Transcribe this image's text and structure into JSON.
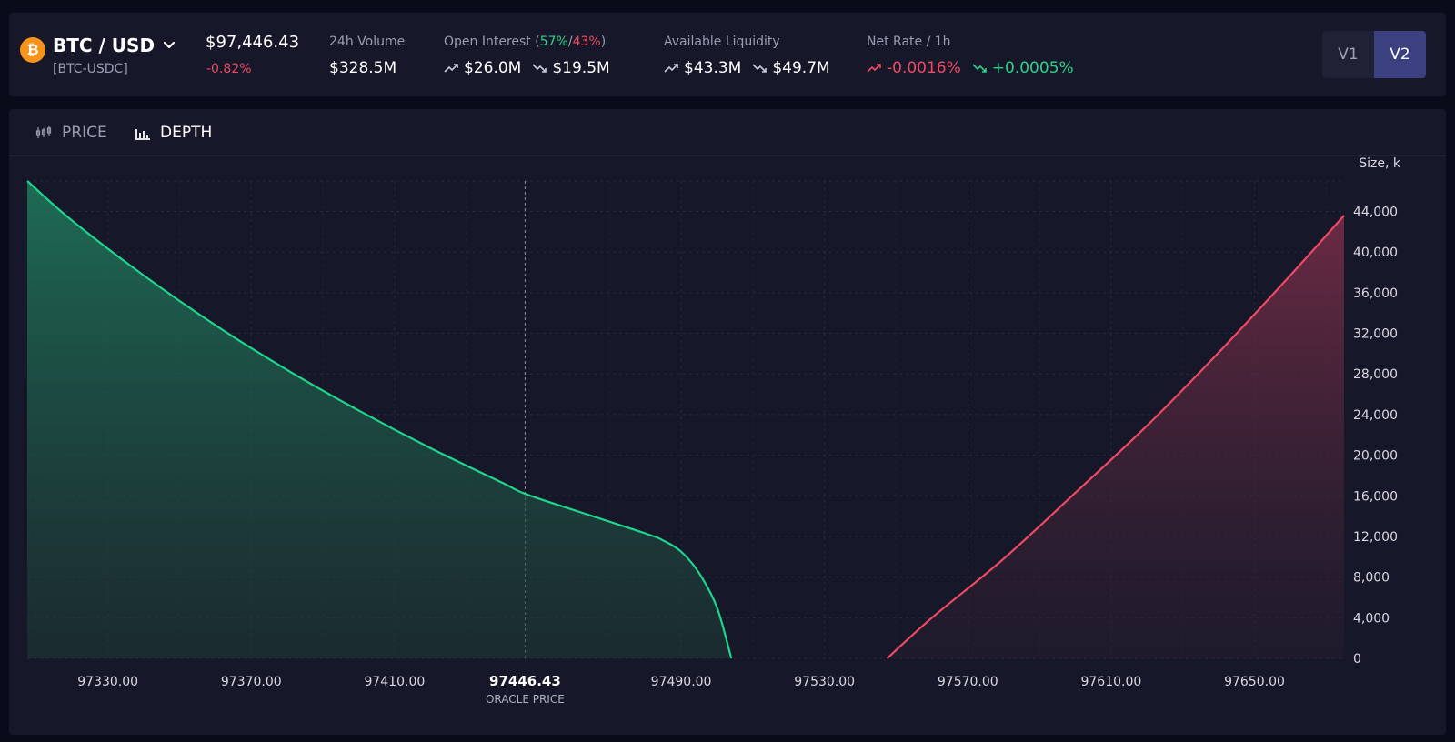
{
  "header": {
    "pair": "BTC / USD",
    "sub": "[BTC-USDC]",
    "price": "$97,446.43",
    "change": "-0.82%",
    "volume_label": "24h Volume",
    "volume_value": "$328.5M",
    "oi_label": "Open Interest",
    "oi_long_pct": "57%",
    "oi_short_pct": "43%",
    "oi_long": "$26.0M",
    "oi_short": "$19.5M",
    "liq_label": "Available Liquidity",
    "liq_long": "$43.3M",
    "liq_short": "$49.7M",
    "rate_label": "Net Rate / 1h",
    "rate_long": "-0.0016%",
    "rate_short": "+0.0005%",
    "v1": "V1",
    "v2": "V2"
  },
  "tabs": {
    "price": "PRICE",
    "depth": "DEPTH"
  },
  "chart_data": {
    "type": "area",
    "ylabel": "Size, k",
    "ylim": [
      0,
      47000
    ],
    "xlim": [
      97307.5,
      97675
    ],
    "x_ticks": [
      97330,
      97370,
      97410,
      97490,
      97530,
      97570,
      97610,
      97650
    ],
    "x_tick_labels": [
      "97330.00",
      "97370.00",
      "97410.00",
      "97490.00",
      "97530.00",
      "97570.00",
      "97610.00",
      "97650.00"
    ],
    "y_ticks": [
      0,
      4000,
      8000,
      12000,
      16000,
      20000,
      24000,
      28000,
      32000,
      36000,
      40000,
      44000
    ],
    "y_tick_labels": [
      "0",
      "4,000",
      "8,000",
      "12,000",
      "16,000",
      "20,000",
      "24,000",
      "28,000",
      "32,000",
      "36,000",
      "40,000",
      "44,000"
    ],
    "oracle_price": 97446.43,
    "oracle_label": "97446.43",
    "oracle_sublabel": "ORACLE PRICE",
    "colors": {
      "bids": "#1fd58c",
      "asks": "#ef4a63"
    },
    "series": [
      {
        "side": "bids",
        "x": [
          97307.5,
          97320,
          97340,
          97360,
          97380,
          97400,
          97420,
          97440,
          97446.43,
          97460,
          97480,
          97485,
          97490,
          97495,
          97500,
          97504
        ],
        "y": [
          47000,
          43100,
          37700,
          32800,
          28400,
          24400,
          20700,
          17300,
          16200,
          14600,
          12300,
          11600,
          10500,
          8400,
          5000,
          0
        ]
      },
      {
        "side": "asks",
        "x": [
          97547.5,
          97560,
          97580,
          97600,
          97620,
          97640,
          97660,
          97675
        ],
        "y": [
          0,
          4000,
          9800,
          16300,
          22900,
          30100,
          37700,
          43600
        ]
      }
    ]
  }
}
